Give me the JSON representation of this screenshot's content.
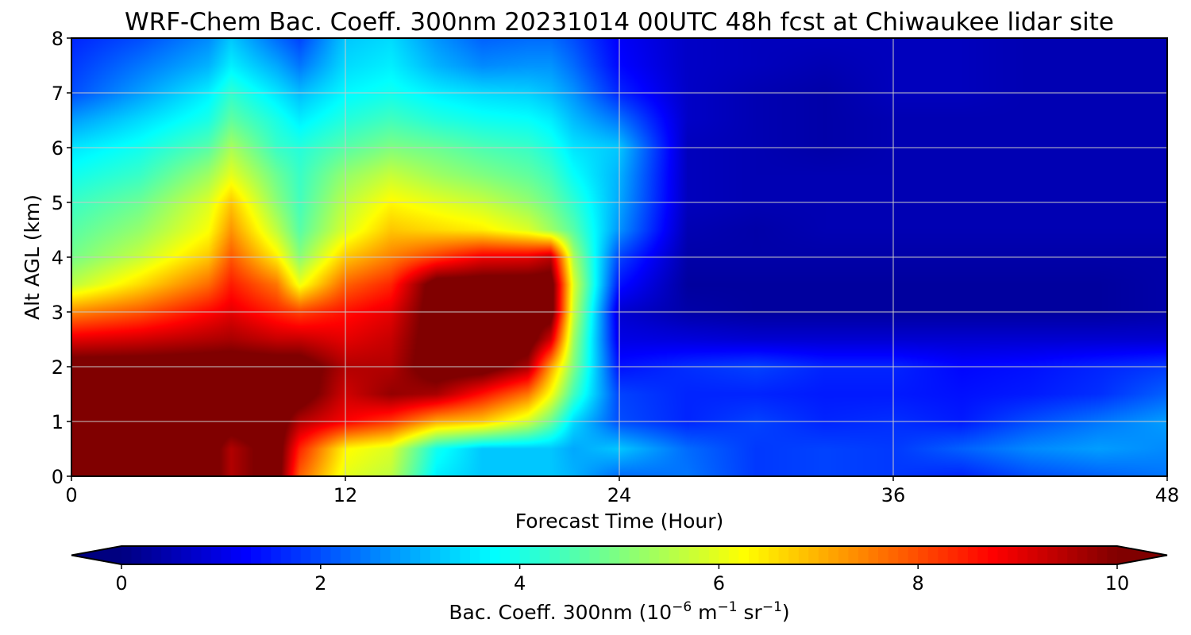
{
  "chart_data": {
    "type": "heatmap",
    "title": "WRF-Chem Bac. Coeff. 300nm  20231014 00UTC 48h fcst at Chiwaukee lidar site",
    "xlabel": "Forecast Time (Hour)",
    "ylabel": "Alt AGL (km)",
    "xlim": [
      0,
      48
    ],
    "ylim": [
      0,
      8
    ],
    "xticks": [
      0,
      12,
      24,
      36,
      48
    ],
    "yticks": [
      0,
      1,
      2,
      3,
      4,
      5,
      6,
      7,
      8
    ],
    "grid": true,
    "colormap": "jet",
    "colorbar": {
      "label_prefix": "Bac. Coeff. 300nm  (10",
      "label_exp1": "−6",
      "label_mid": " m",
      "label_exp2": "−1",
      "label_mid2": " sr",
      "label_exp3": "−1",
      "label_suffix": ")",
      "range": [
        0,
        10
      ],
      "ticks": [
        0,
        2,
        4,
        6,
        8,
        10
      ],
      "extend": "both",
      "placement": "bottom"
    },
    "x": [
      0,
      3,
      6,
      7,
      9,
      10,
      12,
      14,
      16,
      18,
      20,
      21,
      22,
      24,
      27,
      30,
      33,
      36,
      39,
      42,
      45,
      48
    ],
    "y": [
      0,
      0.5,
      1,
      1.5,
      2,
      2.5,
      3,
      3.5,
      4,
      4.5,
      5,
      5.5,
      6,
      6.5,
      7,
      7.5,
      8
    ],
    "z": [
      [
        10.5,
        10.5,
        10.5,
        9.5,
        10.5,
        7.8,
        6.0,
        5.6,
        3.6,
        3.2,
        3.2,
        3.2,
        3.0,
        2.3,
        2.4,
        1.8,
        1.9,
        1.8,
        1.6,
        2.0,
        2.2,
        2.4
      ],
      [
        10.5,
        10.5,
        10.5,
        9.5,
        10.5,
        8.4,
        6.3,
        5.9,
        3.9,
        3.2,
        3.2,
        3.2,
        2.9,
        3.2,
        2.3,
        1.8,
        1.9,
        1.8,
        2.2,
        2.6,
        2.8,
        2.6
      ],
      [
        10.5,
        10.5,
        10.5,
        10.5,
        10.5,
        9.5,
        8.8,
        8.2,
        7.1,
        6.8,
        5.8,
        4.8,
        3.4,
        2.0,
        1.6,
        1.9,
        1.6,
        1.7,
        1.5,
        2.0,
        2.4,
        2.8
      ],
      [
        10.5,
        10.5,
        10.5,
        10.5,
        10.5,
        10.5,
        9.2,
        9.8,
        9.6,
        8.6,
        7.6,
        6.2,
        4.4,
        1.9,
        1.6,
        1.6,
        1.5,
        1.5,
        1.4,
        1.5,
        1.7,
        2.2
      ],
      [
        10.5,
        10.5,
        10.5,
        10.5,
        10.5,
        10.5,
        9.5,
        9.5,
        10.5,
        10.5,
        9.6,
        7.2,
        5.0,
        1.4,
        1.7,
        1.9,
        1.6,
        1.6,
        1.3,
        1.4,
        1.6,
        1.8
      ],
      [
        9.0,
        9.2,
        9.5,
        9.6,
        9.3,
        9.3,
        9.0,
        9.3,
        10.5,
        10.5,
        10.5,
        9.2,
        5.3,
        1.0,
        0.9,
        0.8,
        0.8,
        0.8,
        0.8,
        0.8,
        0.8,
        0.8
      ],
      [
        7.4,
        7.9,
        8.7,
        9.0,
        8.4,
        8.1,
        8.6,
        9.0,
        10.5,
        10.5,
        10.5,
        10.5,
        5.7,
        0.8,
        0.4,
        0.3,
        0.3,
        0.3,
        0.3,
        0.3,
        0.3,
        0.4
      ],
      [
        5.6,
        6.6,
        7.7,
        8.5,
        7.6,
        6.1,
        7.8,
        8.4,
        10.5,
        10.5,
        10.5,
        10.5,
        5.9,
        1.4,
        0.3,
        0.3,
        0.3,
        0.3,
        0.3,
        0.3,
        0.3,
        0.4
      ],
      [
        4.9,
        5.7,
        6.8,
        7.9,
        6.4,
        5.1,
        6.8,
        7.5,
        8.2,
        8.9,
        9.0,
        9.4,
        5.4,
        1.9,
        0.4,
        0.4,
        0.4,
        0.4,
        0.4,
        0.4,
        0.4,
        0.4
      ],
      [
        4.6,
        5.2,
        6.2,
        7.3,
        5.6,
        4.6,
        5.9,
        6.8,
        6.6,
        6.4,
        5.9,
        5.3,
        4.6,
        2.7,
        0.5,
        0.4,
        0.5,
        0.5,
        0.5,
        0.5,
        0.5,
        0.5
      ],
      [
        4.3,
        4.8,
        5.9,
        6.8,
        5.1,
        4.4,
        5.6,
        6.3,
        6.0,
        5.7,
        5.2,
        4.8,
        4.2,
        2.9,
        0.6,
        0.5,
        0.5,
        0.5,
        0.5,
        0.5,
        0.5,
        0.5
      ],
      [
        3.9,
        4.3,
        5.3,
        6.0,
        4.8,
        4.3,
        5.2,
        5.7,
        5.3,
        5.0,
        4.7,
        4.4,
        3.8,
        3.0,
        0.6,
        0.5,
        0.5,
        0.5,
        0.5,
        0.5,
        0.5,
        0.5
      ],
      [
        3.5,
        3.9,
        4.6,
        5.4,
        4.3,
        4.1,
        4.6,
        5.0,
        4.8,
        4.5,
        4.3,
        4.0,
        3.5,
        3.2,
        0.6,
        0.5,
        0.4,
        0.5,
        0.5,
        0.5,
        0.5,
        0.5
      ],
      [
        2.8,
        3.4,
        4.0,
        4.7,
        4.0,
        3.6,
        4.1,
        4.4,
        4.1,
        3.9,
        3.8,
        3.6,
        3.1,
        2.4,
        0.7,
        0.5,
        0.4,
        0.5,
        0.5,
        0.5,
        0.5,
        0.5
      ],
      [
        2.0,
        2.8,
        3.6,
        4.2,
        3.5,
        3.1,
        3.7,
        3.9,
        3.6,
        3.4,
        3.3,
        3.1,
        2.7,
        1.6,
        0.7,
        0.5,
        0.4,
        0.6,
        0.6,
        0.5,
        0.5,
        0.5
      ],
      [
        1.8,
        2.4,
        3.0,
        3.6,
        2.9,
        2.4,
        3.4,
        3.6,
        3.0,
        2.6,
        2.7,
        2.7,
        2.3,
        1.3,
        0.7,
        0.6,
        0.5,
        0.6,
        0.6,
        0.5,
        0.5,
        0.5
      ],
      [
        1.6,
        2.0,
        2.6,
        3.2,
        2.3,
        1.9,
        3.2,
        3.4,
        2.7,
        2.2,
        2.3,
        2.3,
        2.0,
        1.2,
        0.7,
        0.6,
        0.6,
        0.6,
        0.6,
        0.5,
        0.5,
        0.5
      ]
    ]
  }
}
